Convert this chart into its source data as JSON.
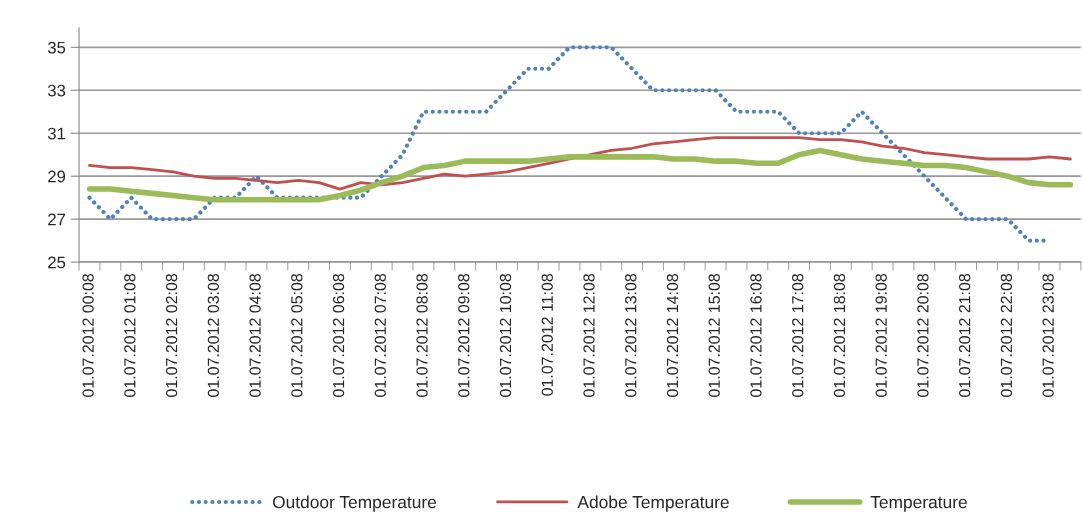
{
  "chart_data": {
    "type": "line",
    "categories": [
      "01.07.2012 00:08",
      null,
      "01.07.2012 01:08",
      null,
      "01.07.2012 02:08",
      null,
      "01.07.2012 03:08",
      null,
      "01.07.2012 04:08",
      null,
      "01.07.2012 05:08",
      null,
      "01.07.2012 06:08",
      null,
      "01.07.2012 07:08",
      null,
      "01.07.2012 08:08",
      null,
      "01.07.2012 09:08",
      null,
      "01.07.2012 10:08",
      null,
      "01.07.2012 11:08",
      null,
      "01.07.2012 12:08",
      null,
      "01.07.2012 13:08",
      null,
      "01.07.2012 14:08",
      null,
      "01.07.2012 15:08",
      null,
      "01.07.2012 16:08",
      null,
      "01.07.2012 17:08",
      null,
      "01.07.2012 18:08",
      null,
      "01.07.2012 19:08",
      null,
      "01.07.2012 20:08",
      null,
      "01.07.2012 21:08",
      null,
      "01.07.2012 22:08",
      null,
      "01.07.2012 23:08",
      null
    ],
    "series": [
      {
        "name": "Outdoor Temperature",
        "color": "#4f81bd",
        "line_style": "dotted",
        "values": [
          28,
          27,
          28,
          27,
          27,
          27,
          28,
          28,
          29,
          28,
          28,
          28,
          28,
          28,
          29,
          30,
          32,
          32,
          32,
          32,
          33,
          34,
          34,
          35,
          35,
          35,
          34,
          33,
          33,
          33,
          33,
          32,
          32,
          32,
          31,
          31,
          31,
          32,
          31,
          30,
          29,
          28,
          27,
          27,
          27,
          26,
          26,
          null
        ]
      },
      {
        "name": "Adobe Temperature",
        "color": "#c0504d",
        "line_style": "solid",
        "values": [
          29.5,
          29.4,
          29.4,
          29.3,
          29.2,
          29.0,
          28.9,
          28.9,
          28.8,
          28.7,
          28.8,
          28.7,
          28.4,
          28.7,
          28.6,
          28.7,
          28.9,
          29.1,
          29.0,
          29.1,
          29.2,
          29.4,
          29.6,
          29.8,
          30.0,
          30.2,
          30.3,
          30.5,
          30.6,
          30.7,
          30.8,
          30.8,
          30.8,
          30.8,
          30.8,
          30.7,
          30.7,
          30.6,
          30.4,
          30.3,
          30.1,
          30.0,
          29.9,
          29.8,
          29.8,
          29.8,
          29.9,
          29.8
        ]
      },
      {
        "name": "Temperature",
        "color": "#9bbb59",
        "line_style": "solid",
        "values": [
          28.4,
          28.4,
          28.3,
          28.2,
          28.1,
          28.0,
          27.9,
          27.9,
          27.9,
          27.9,
          27.9,
          27.9,
          28.1,
          28.35,
          28.7,
          29.0,
          29.4,
          29.5,
          29.7,
          29.7,
          29.7,
          29.7,
          29.8,
          29.9,
          29.9,
          29.9,
          29.9,
          29.9,
          29.8,
          29.8,
          29.7,
          29.7,
          29.6,
          29.6,
          30.0,
          30.2,
          30.0,
          29.8,
          29.7,
          29.6,
          29.5,
          29.5,
          29.4,
          29.2,
          29.0,
          28.7,
          28.6,
          28.6
        ]
      }
    ],
    "ylim": [
      25,
      35.9
    ],
    "yticks": [
      25,
      27,
      29,
      31,
      33,
      35
    ],
    "grid": "y",
    "legend": "bottom",
    "marker": "none"
  }
}
